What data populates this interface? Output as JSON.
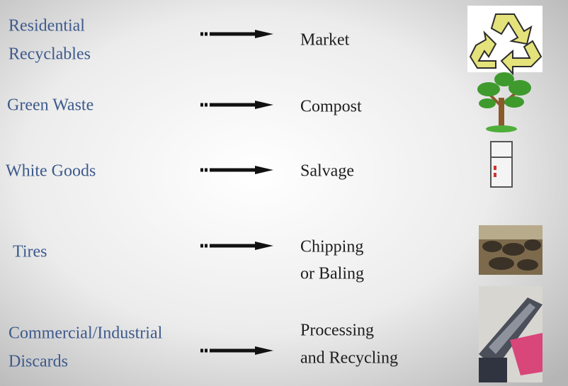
{
  "rows": [
    {
      "source": [
        "Residential",
        "Recyclables"
      ],
      "destination": [
        "Market"
      ]
    },
    {
      "source": [
        "Green Waste"
      ],
      "destination": [
        "Compost"
      ]
    },
    {
      "source": [
        "White Goods"
      ],
      "destination": [
        "Salvage"
      ]
    },
    {
      "source": [
        "Tires"
      ],
      "destination": [
        "Chipping",
        "or Baling"
      ]
    },
    {
      "source": [
        "Commercial/Industrial",
        "Discards"
      ],
      "destination": [
        "Processing",
        "and Recycling"
      ]
    }
  ]
}
